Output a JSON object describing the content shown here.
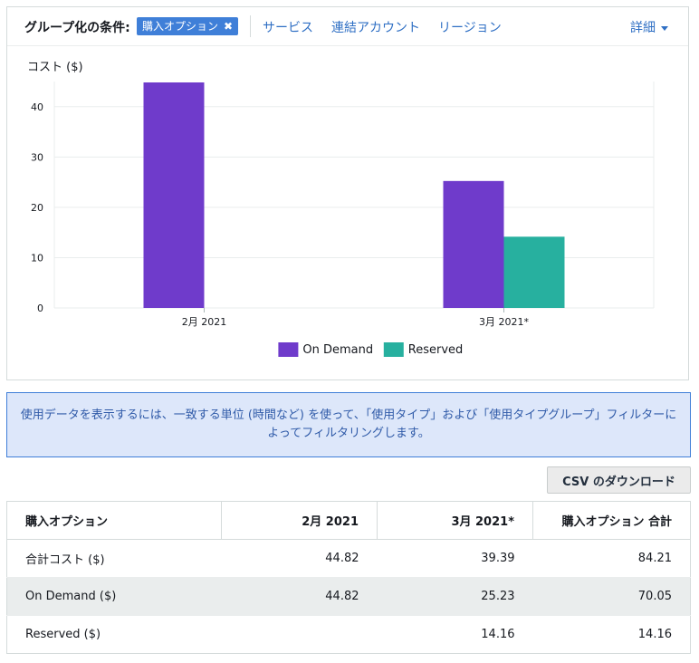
{
  "toolbar": {
    "group_by_label": "グループ化の条件:",
    "active_token": "購入オプション",
    "links": [
      "サービス",
      "連結アカウント",
      "リージョン"
    ],
    "detail_label": "詳細"
  },
  "chart_data": {
    "type": "bar",
    "ylabel": "コスト ($)",
    "ylim": [
      0,
      45
    ],
    "yticks": [
      "0",
      "10",
      "20",
      "30",
      "40"
    ],
    "categories": [
      "2月 2021",
      "3月 2021*"
    ],
    "series": [
      {
        "name": "On Demand",
        "color": "#6f3bcb",
        "values": [
          44.82,
          25.23
        ]
      },
      {
        "name": "Reserved",
        "color": "#27b09f",
        "values": [
          0,
          14.16
        ]
      }
    ],
    "grid": true,
    "legend": "bottom-center"
  },
  "alert": {
    "text": "使用データを表示するには、一致する単位 (時間など) を使って、「使用タイプ」および「使用タイプグループ」フィルターによってフィルタリングします。"
  },
  "csv_button": "CSV のダウンロード",
  "table": {
    "headers": [
      "購入オプション",
      "2月 2021",
      "3月 2021*",
      "購入オプション 合計"
    ],
    "rows": [
      [
        "合計コスト ($)",
        "44.82",
        "39.39",
        "84.21"
      ],
      [
        "On Demand ($)",
        "44.82",
        "25.23",
        "70.05"
      ],
      [
        "Reserved ($)",
        "",
        "14.16",
        "14.16"
      ]
    ]
  }
}
